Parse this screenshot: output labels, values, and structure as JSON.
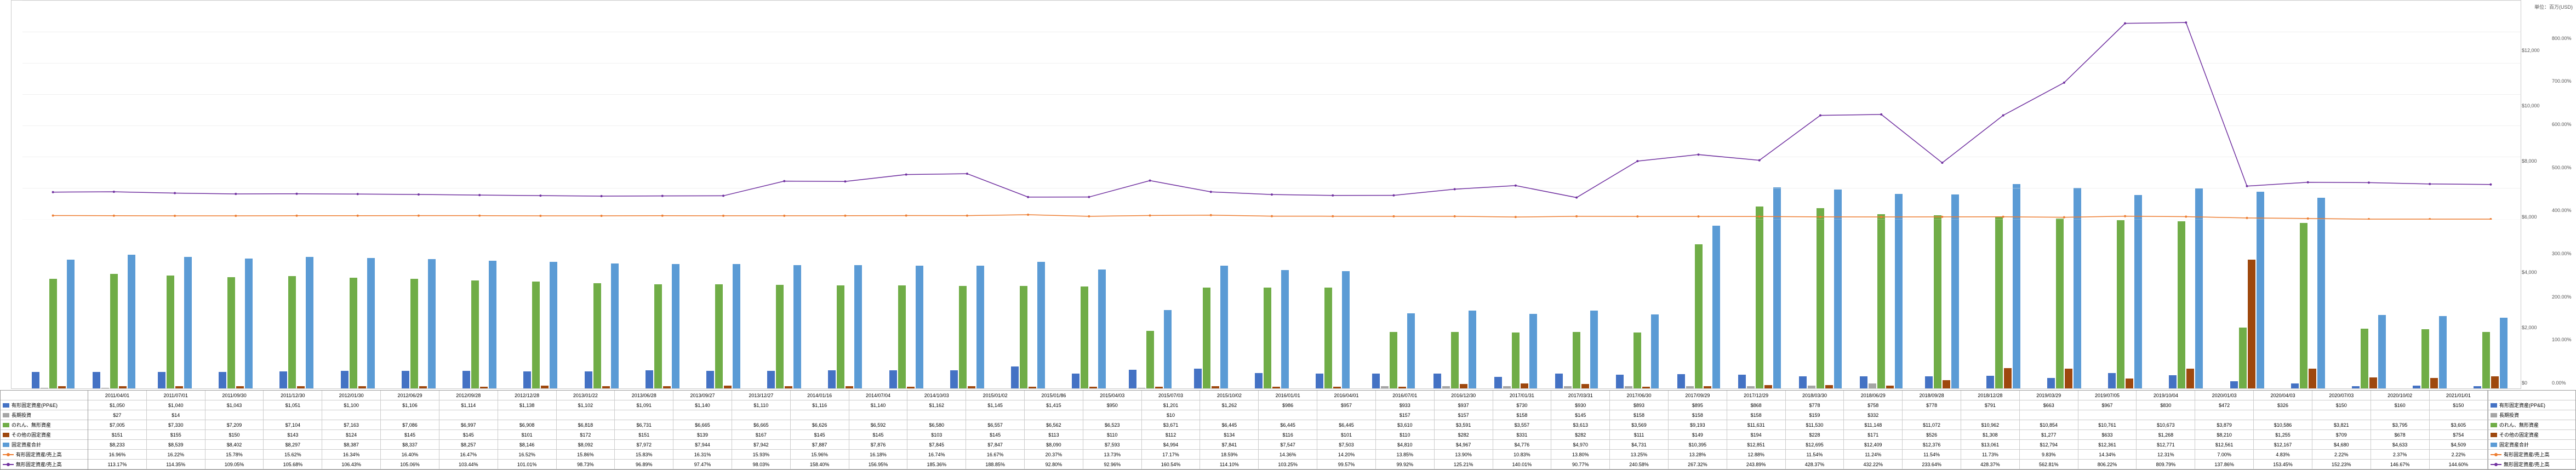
{
  "unit_label": "単位：百万(USD)",
  "y_left": {
    "max": 14000,
    "ticks": [
      "$0",
      "$2,000",
      "$4,000",
      "$6,000",
      "$8,000",
      "$10,000",
      "$12,000",
      "$14,000"
    ],
    "tick_vals": [
      0,
      2000,
      4000,
      6000,
      8000,
      10000,
      12000,
      14000
    ]
  },
  "y_right": {
    "max": 900,
    "ticks": [
      "0.00%",
      "100.00%",
      "200.00%",
      "300.00%",
      "400.00%",
      "500.00%",
      "600.00%",
      "700.00%",
      "800.00%",
      "900.00%"
    ],
    "tick_vals": [
      0,
      100,
      200,
      300,
      400,
      500,
      600,
      700,
      800,
      900
    ]
  },
  "series_labels": {
    "s1": "有形固定資産(PP&E)",
    "s2": "長期投資",
    "s3": "のれん、無形資産",
    "s4": "その他の固定資産",
    "s5": "固定資産合計",
    "s6": "有形固定資産/売上高",
    "s7": "無形固定資産/売上高"
  },
  "colors": {
    "s1": "#4472c4",
    "s2": "#a5a5a5",
    "s3": "#70ad47",
    "s4": "#9e480e",
    "s5": "#5b9bd5",
    "s6": "#ed7d31",
    "s7": "#7030a0",
    "grid": "#e0e0e0",
    "text": "#555555",
    "border": "#999999",
    "bg": "#ffffff"
  },
  "line_width": 1.5,
  "marker_size": 4,
  "font_size_axis": 9,
  "font_size_table": 9,
  "periods": [
    {
      "d": "2011/04/01",
      "s1": 1050,
      "s2": 27,
      "s3": 7005,
      "s4": 151,
      "s5": 8233,
      "s6": 16.96,
      "s7": 113.17
    },
    {
      "d": "2011/07/01",
      "s1": 1040,
      "s2": 14,
      "s3": 7330,
      "s4": 155,
      "s5": 8539,
      "s6": 16.22,
      "s7": 114.35
    },
    {
      "d": "2011/09/30",
      "s1": 1043,
      "s2": null,
      "s3": 7209,
      "s4": 150,
      "s5": 8402,
      "s6": 15.78,
      "s7": 109.05
    },
    {
      "d": "2011/12/30",
      "s1": 1051,
      "s2": null,
      "s3": 7104,
      "s4": 143,
      "s5": 8297,
      "s6": 15.62,
      "s7": 105.68
    },
    {
      "d": "2012/01/30",
      "s1": 1100,
      "s2": null,
      "s3": 7163,
      "s4": 124,
      "s5": 8387,
      "s6": 16.34,
      "s7": 106.43
    },
    {
      "d": "2012/06/29",
      "s1": 1106,
      "s2": null,
      "s3": 7086,
      "s4": 145,
      "s5": 8337,
      "s6": 16.4,
      "s7": 105.06
    },
    {
      "d": "2012/09/28",
      "s1": 1114,
      "s2": null,
      "s3": 6997,
      "s4": 145,
      "s5": 8257,
      "s6": 16.47,
      "s7": 103.44
    },
    {
      "d": "2012/12/28",
      "s1": 1138,
      "s2": null,
      "s3": 6908,
      "s4": 101,
      "s5": 8146,
      "s6": 16.52,
      "s7": 101.01
    },
    {
      "d": "2013/01/22",
      "s1": 1102,
      "s2": null,
      "s3": 6818,
      "s4": 172,
      "s5": 8092,
      "s6": 15.86,
      "s7": 98.73
    },
    {
      "d": "2013/06/28",
      "s1": 1091,
      "s2": null,
      "s3": 6731,
      "s4": 151,
      "s5": 7972,
      "s6": 15.83,
      "s7": 96.89
    },
    {
      "d": "2013/09/27",
      "s1": 1140,
      "s2": null,
      "s3": 6665,
      "s4": 139,
      "s5": 7944,
      "s6": 16.31,
      "s7": 97.47
    },
    {
      "d": "2013/12/27",
      "s1": 1110,
      "s2": null,
      "s3": 6665,
      "s4": 167,
      "s5": 7942,
      "s6": 15.93,
      "s7": 98.03
    },
    {
      "d": "2014/01/16",
      "s1": 1116,
      "s2": null,
      "s3": 6626,
      "s4": 145,
      "s5": 7887,
      "s6": 15.96,
      "s7": 158.4
    },
    {
      "d": "2014/07/04",
      "s1": 1140,
      "s2": null,
      "s3": 6592,
      "s4": 145,
      "s5": 7876,
      "s6": 16.18,
      "s7": 156.95
    },
    {
      "d": "2014/10/03",
      "s1": 1162,
      "s2": null,
      "s3": 6580,
      "s4": 103,
      "s5": 7845,
      "s6": 16.74,
      "s7": 185.36
    },
    {
      "d": "2015/01/02",
      "s1": 1145,
      "s2": null,
      "s3": 6557,
      "s4": 145,
      "s5": 7847,
      "s6": 16.67,
      "s7": 188.85
    },
    {
      "d": "2015/01/86",
      "s1": 1415,
      "s2": null,
      "s3": 6562,
      "s4": 113,
      "s5": 8090,
      "s6": 20.37,
      "s7": 92.8
    },
    {
      "d": "2015/04/03",
      "s1": 950,
      "s2": null,
      "s3": 6523,
      "s4": 110,
      "s5": 7593,
      "s6": 13.73,
      "s7": 92.96
    },
    {
      "d": "2015/07/03",
      "s1": 1201,
      "s2": 10,
      "s3": 3671,
      "s4": 112,
      "s5": 4994,
      "s6": 17.17,
      "s7": 160.54
    },
    {
      "d": "2015/10/02",
      "s1": 1262,
      "s2": null,
      "s3": 6445,
      "s4": 134,
      "s5": 7841,
      "s6": 18.59,
      "s7": 114.1
    },
    {
      "d": "2016/01/01",
      "s1": 986,
      "s2": null,
      "s3": 6445,
      "s4": 116,
      "s5": 7547,
      "s6": 14.36,
      "s7": 103.25
    },
    {
      "d": "2016/04/01",
      "s1": 957,
      "s2": null,
      "s3": 6445,
      "s4": 101,
      "s5": 7503,
      "s6": 14.2,
      "s7": 99.57
    },
    {
      "d": "2016/07/01",
      "s1": 933,
      "s2": 157,
      "s3": 3610,
      "s4": 110,
      "s5": 4810,
      "s6": 13.85,
      "s7": 99.92
    },
    {
      "d": "2016/12/30",
      "s1": 937,
      "s2": 157,
      "s3": 3591,
      "s4": 282,
      "s5": 4967,
      "s6": 13.9,
      "s7": 125.21
    },
    {
      "d": "2017/01/31",
      "s1": 730,
      "s2": 158,
      "s3": 3557,
      "s4": 331,
      "s5": 4776,
      "s6": 10.83,
      "s7": 140.01
    },
    {
      "d": "2017/03/31",
      "s1": 930,
      "s2": 145,
      "s3": 3613,
      "s4": 282,
      "s5": 4970,
      "s6": 13.8,
      "s7": 90.77
    },
    {
      "d": "2017/06/30",
      "s1": 893,
      "s2": 158,
      "s3": 3569,
      "s4": 111,
      "s5": 4731,
      "s6": 13.25,
      "s7": 240.58
    },
    {
      "d": "2017/09/29",
      "s1": 895,
      "s2": 158,
      "s3": 9193,
      "s4": 149,
      "s5": 10395,
      "s6": 13.28,
      "s7": 267.32
    },
    {
      "d": "2017/12/29",
      "s1": 868,
      "s2": 158,
      "s3": 11631,
      "s4": 194,
      "s5": 12851,
      "s6": 12.88,
      "s7": 243.89
    },
    {
      "d": "2018/03/30",
      "s1": 778,
      "s2": 159,
      "s3": 11530,
      "s4": 228,
      "s5": 12695,
      "s6": 11.54,
      "s7": 428.37
    },
    {
      "d": "2018/06/29",
      "s1": 758,
      "s2": 332,
      "s3": 11148,
      "s4": 171,
      "s5": 12409,
      "s6": 11.24,
      "s7": 432.22
    },
    {
      "d": "2018/09/28",
      "s1": 778,
      "s2": null,
      "s3": 11072,
      "s4": 526,
      "s5": 12376,
      "s6": 11.54,
      "s7": 233.64
    },
    {
      "d": "2018/12/28",
      "s1": 791,
      "s2": null,
      "s3": 10962,
      "s4": 1308,
      "s5": 13061,
      "s6": 11.73,
      "s7": 428.37
    },
    {
      "d": "2019/03/29",
      "s1": 663,
      "s2": null,
      "s3": 10854,
      "s4": 1277,
      "s5": 12794,
      "s6": 9.83,
      "s7": 562.81
    },
    {
      "d": "2019/07/05",
      "s1": 967,
      "s2": null,
      "s3": 10761,
      "s4": 633,
      "s5": 12361,
      "s6": 14.34,
      "s7": 806.22
    },
    {
      "d": "2019/10/04",
      "s1": 830,
      "s2": null,
      "s3": 10673,
      "s4": 1268,
      "s5": 12771,
      "s6": 12.31,
      "s7": 809.79
    },
    {
      "d": "2020/01/03",
      "s1": 472,
      "s2": null,
      "s3": 3879,
      "s4": 8210,
      "s5": 12561,
      "s6": 7.0,
      "s7": 137.86
    },
    {
      "d": "2020/04/03",
      "s1": 326,
      "s2": null,
      "s3": 10586,
      "s4": 1255,
      "s5": 12167,
      "s6": 4.83,
      "s7": 153.45
    },
    {
      "d": "2020/07/03",
      "s1": 150,
      "s2": null,
      "s3": 3821,
      "s4": 709,
      "s5": 4680,
      "s6": 2.22,
      "s7": 152.23
    },
    {
      "d": "2020/10/02",
      "s1": 160,
      "s2": null,
      "s3": 3795,
      "s4": 678,
      "s5": 4633,
      "s6": 2.37,
      "s7": 146.67
    },
    {
      "d": "2021/01/01",
      "s1": 150,
      "s2": null,
      "s3": 3605,
      "s4": 754,
      "s5": 4509,
      "s6": 2.22,
      "s7": 144.6
    }
  ]
}
